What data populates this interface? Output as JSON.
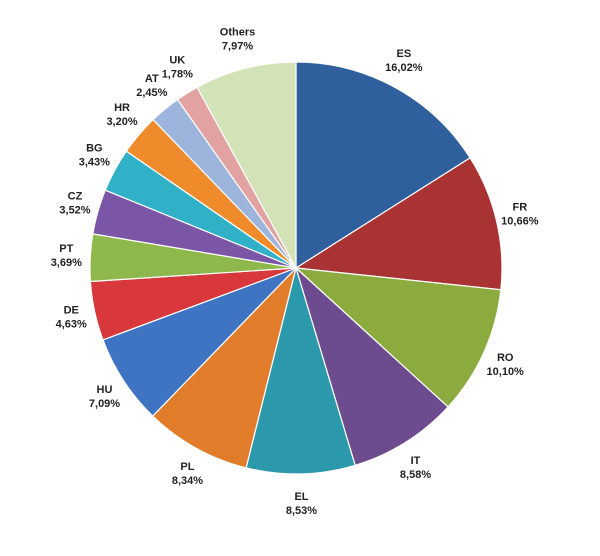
{
  "chart_data": {
    "type": "pie",
    "categories": [
      "ES",
      "FR",
      "RO",
      "IT",
      "EL",
      "PL",
      "HU",
      "DE",
      "PT",
      "CZ",
      "BG",
      "HR",
      "AT",
      "UK",
      "Others"
    ],
    "values": [
      16.02,
      10.66,
      10.1,
      8.58,
      8.53,
      8.34,
      7.09,
      4.63,
      3.69,
      3.52,
      3.43,
      3.2,
      2.45,
      1.78,
      7.97
    ],
    "value_labels": [
      "16,02%",
      "10,66%",
      "10,10%",
      "8,58%",
      "8,53%",
      "8,34%",
      "7,09%",
      "4,63%",
      "3,69%",
      "3,52%",
      "3,43%",
      "3,20%",
      "2,45%",
      "1,78%",
      "7,97%"
    ],
    "colors": [
      "#2f5f9c",
      "#a93333",
      "#8cab3e",
      "#6c4b8e",
      "#2b98ab",
      "#e17c2b",
      "#3e74c2",
      "#d8383b",
      "#8fb84c",
      "#7c56a6",
      "#30b1c8",
      "#f08b2c",
      "#9db5dc",
      "#e2a2a2",
      "#d4e2b7"
    ]
  }
}
